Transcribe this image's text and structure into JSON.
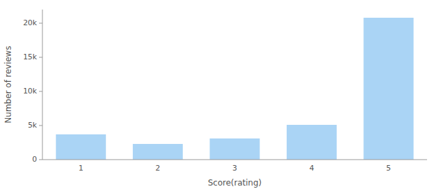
{
  "chart_data": {
    "type": "bar",
    "xlabel": "Score(rating)",
    "ylabel": "Number of reviews",
    "categories": [
      "1",
      "2",
      "3",
      "4",
      "5"
    ],
    "values": [
      3700,
      2300,
      3100,
      5100,
      20800
    ],
    "color": "#aad4f5",
    "ylim": [
      0,
      22000
    ],
    "yticks": [
      0,
      {
        "value": 5000,
        "label": "5k"
      },
      {
        "value": 10000,
        "label": "10k"
      },
      {
        "value": 15000,
        "label": "15k"
      },
      {
        "value": 20000,
        "label": "20k"
      }
    ],
    "grid": false
  }
}
